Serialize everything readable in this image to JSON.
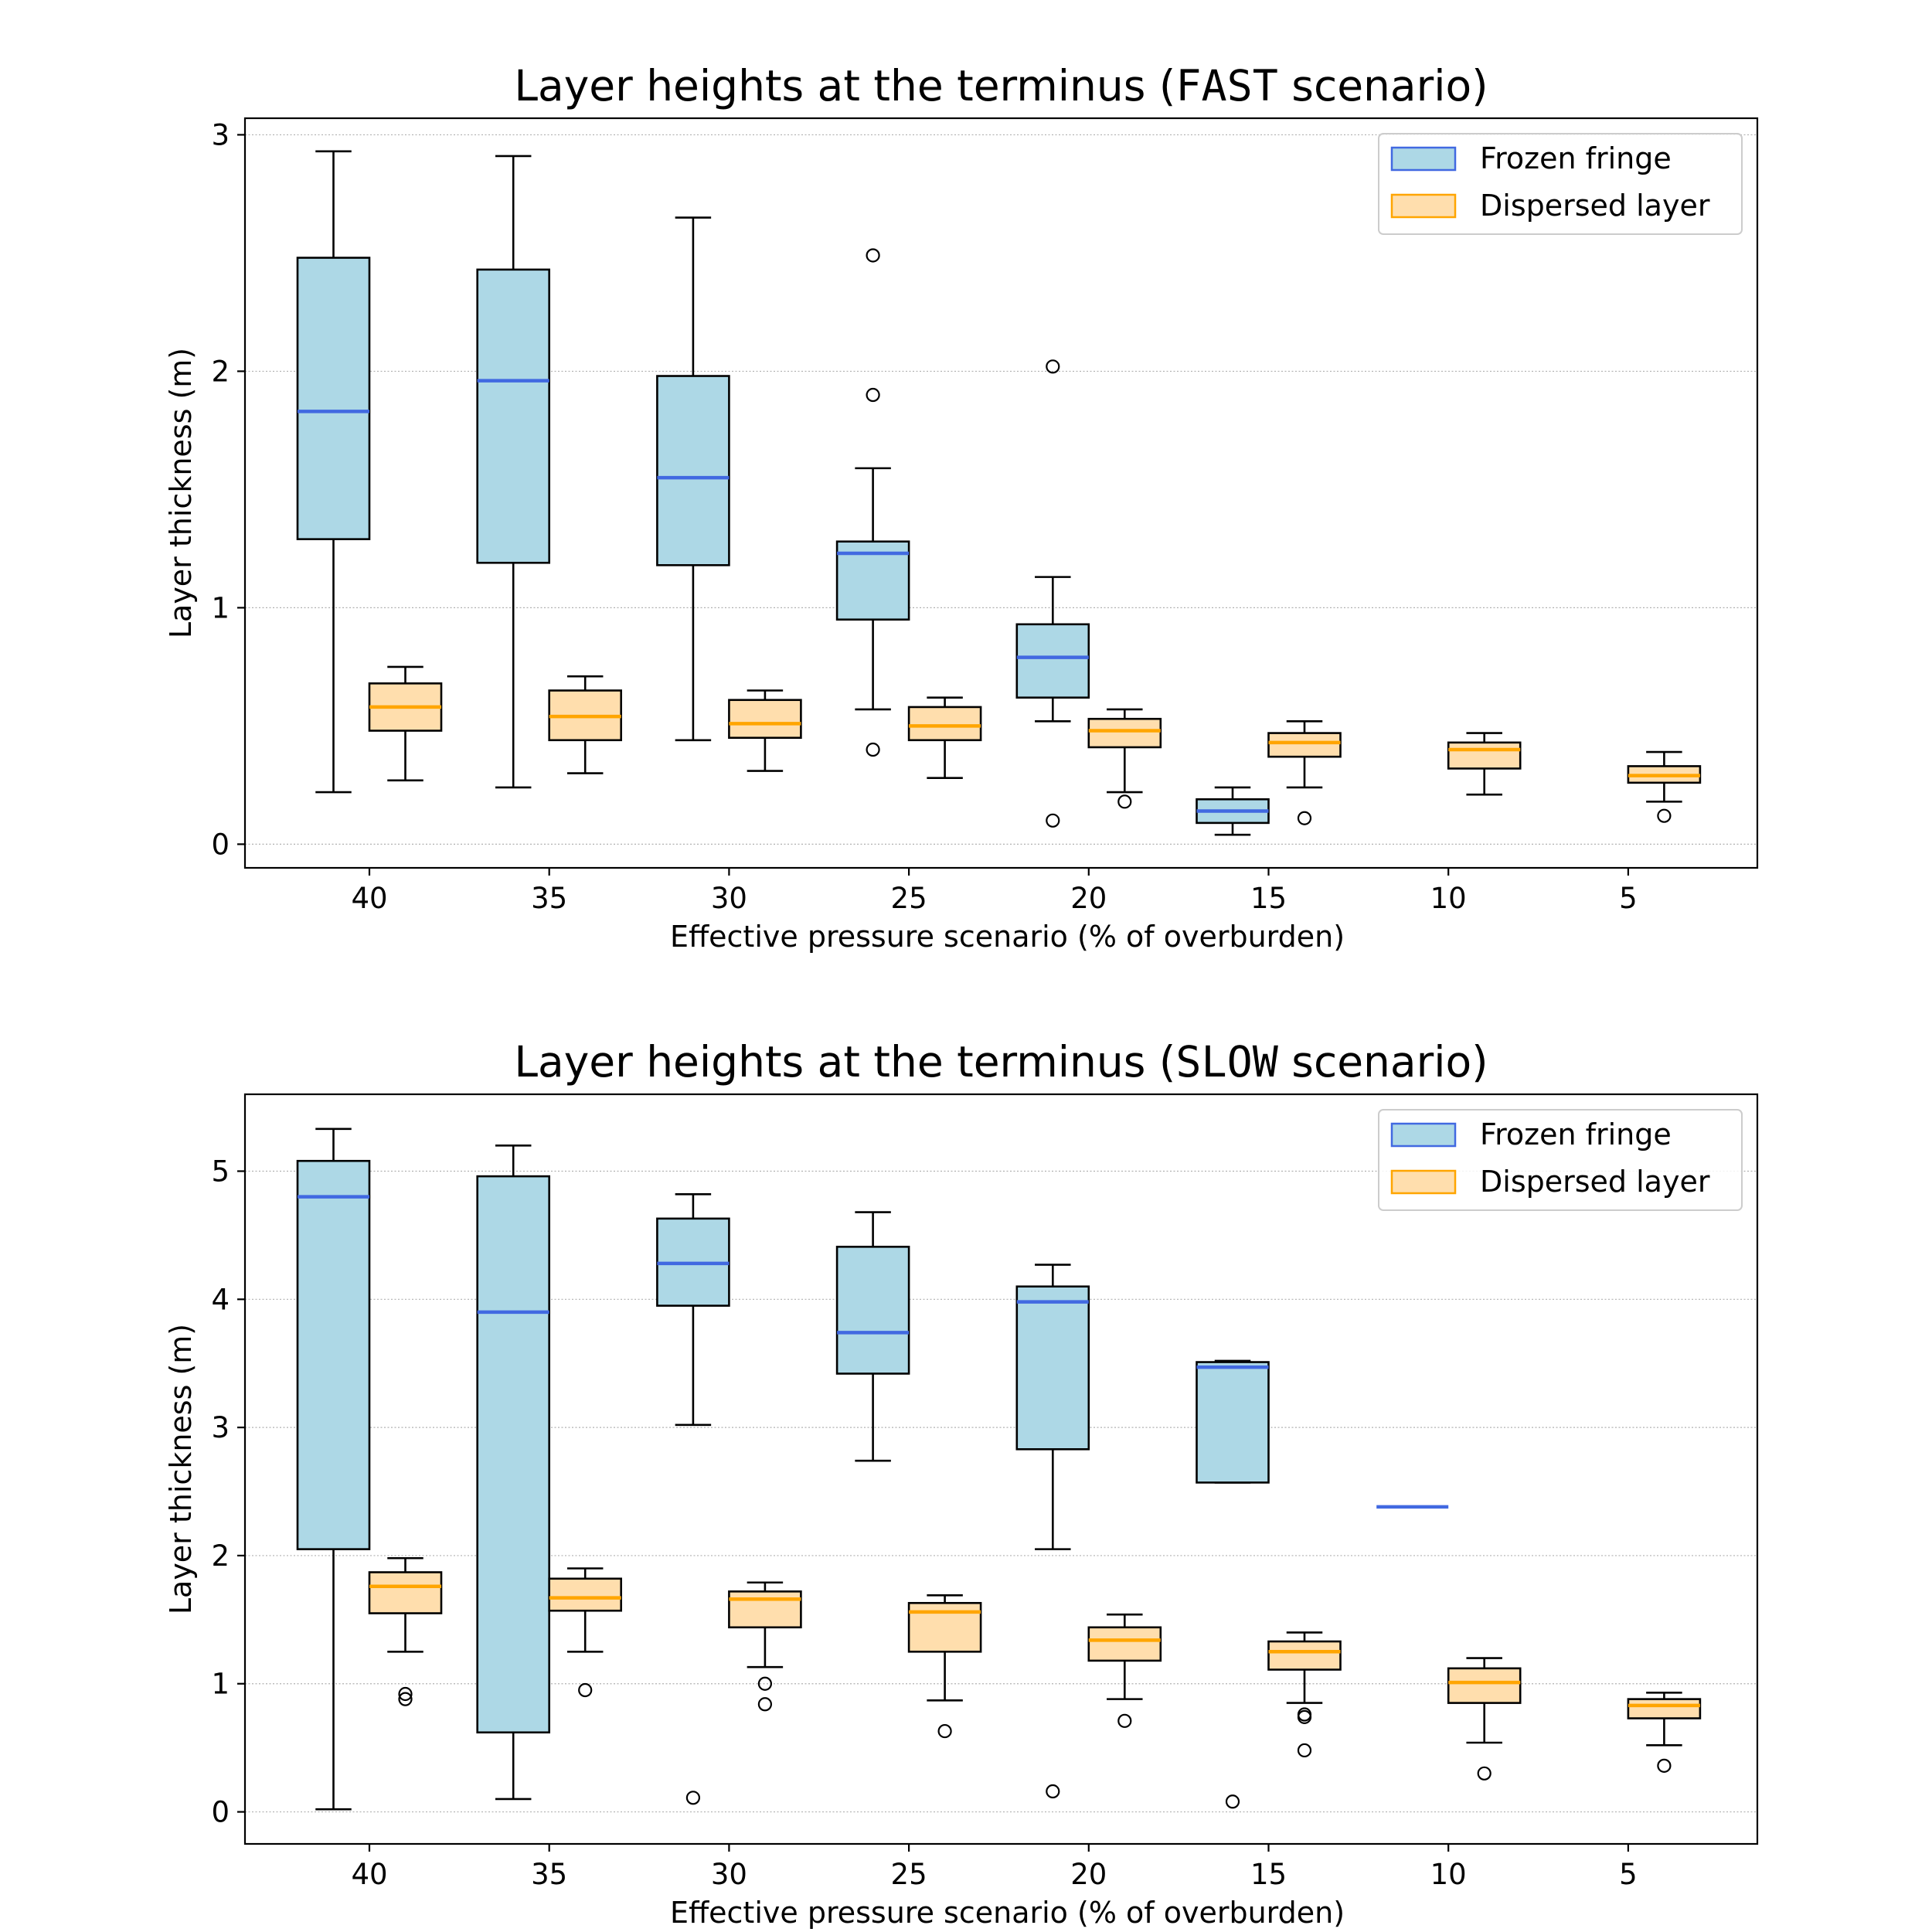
{
  "colors": {
    "frozen_fill": "#add8e6",
    "frozen_median": "#4169e1",
    "dispersed_fill": "#ffdead",
    "dispersed_median": "#ffa500",
    "grid": "#b0b0b0",
    "frame": "#000000"
  },
  "chart_data": [
    {
      "type": "box",
      "title": {
        "prefix": "Layer heights at the terminus (",
        "code": "FAST",
        "suffix": " scenario)"
      },
      "xlabel": "Effective pressure scenario (% of overburden)",
      "ylabel": "Layer thickness (m)",
      "categories": [
        "40",
        "35",
        "30",
        "25",
        "20",
        "15",
        "10",
        "5"
      ],
      "ylim": [
        -0.1,
        3.07
      ],
      "yticks": [
        0,
        1,
        2,
        3
      ],
      "grid": "y, dotted",
      "legend": {
        "placement": "top-right",
        "entries": [
          "Frozen fringe",
          "Dispersed layer"
        ]
      },
      "series": [
        {
          "name": "Frozen fringe",
          "boxes": [
            {
              "category": "40",
              "whislo": 0.22,
              "q1": 1.29,
              "med": 1.83,
              "q3": 2.48,
              "whishi": 2.93,
              "fliers": []
            },
            {
              "category": "35",
              "whislo": 0.24,
              "q1": 1.19,
              "med": 1.96,
              "q3": 2.43,
              "whishi": 2.91,
              "fliers": []
            },
            {
              "category": "30",
              "whislo": 0.44,
              "q1": 1.18,
              "med": 1.55,
              "q3": 1.98,
              "whishi": 2.65,
              "fliers": []
            },
            {
              "category": "25",
              "whislo": 0.57,
              "q1": 0.95,
              "med": 1.23,
              "q3": 1.28,
              "whishi": 1.59,
              "fliers": [
                2.49,
                1.9,
                0.4
              ]
            },
            {
              "category": "20",
              "whislo": 0.52,
              "q1": 0.62,
              "med": 0.79,
              "q3": 0.93,
              "whishi": 1.13,
              "fliers": [
                2.02,
                0.1
              ]
            },
            {
              "category": "15",
              "whislo": 0.04,
              "q1": 0.09,
              "med": 0.14,
              "q3": 0.19,
              "whishi": 0.24,
              "fliers": []
            }
          ]
        },
        {
          "name": "Dispersed layer",
          "boxes": [
            {
              "category": "40",
              "whislo": 0.27,
              "q1": 0.48,
              "med": 0.58,
              "q3": 0.68,
              "whishi": 0.75,
              "fliers": []
            },
            {
              "category": "35",
              "whislo": 0.3,
              "q1": 0.44,
              "med": 0.54,
              "q3": 0.65,
              "whishi": 0.71,
              "fliers": []
            },
            {
              "category": "30",
              "whislo": 0.31,
              "q1": 0.45,
              "med": 0.51,
              "q3": 0.61,
              "whishi": 0.65,
              "fliers": []
            },
            {
              "category": "25",
              "whislo": 0.28,
              "q1": 0.44,
              "med": 0.5,
              "q3": 0.58,
              "whishi": 0.62,
              "fliers": []
            },
            {
              "category": "20",
              "whislo": 0.22,
              "q1": 0.41,
              "med": 0.48,
              "q3": 0.53,
              "whishi": 0.57,
              "fliers": [
                0.18
              ]
            },
            {
              "category": "15",
              "whislo": 0.24,
              "q1": 0.37,
              "med": 0.43,
              "q3": 0.47,
              "whishi": 0.52,
              "fliers": [
                0.11
              ]
            },
            {
              "category": "10",
              "whislo": 0.21,
              "q1": 0.32,
              "med": 0.4,
              "q3": 0.43,
              "whishi": 0.47,
              "fliers": []
            },
            {
              "category": "5",
              "whislo": 0.18,
              "q1": 0.26,
              "med": 0.29,
              "q3": 0.33,
              "whishi": 0.39,
              "fliers": [
                0.12
              ]
            }
          ]
        }
      ]
    },
    {
      "type": "box",
      "title": {
        "prefix": "Layer heights at the terminus (",
        "code": "SLOW",
        "suffix": " scenario)"
      },
      "xlabel": "Effective pressure scenario (% of overburden)",
      "ylabel": "Layer thickness (m)",
      "categories": [
        "40",
        "35",
        "30",
        "25",
        "20",
        "15",
        "10",
        "5"
      ],
      "ylim": [
        -0.25,
        5.6
      ],
      "yticks": [
        0,
        1,
        2,
        3,
        4,
        5
      ],
      "grid": "y, dotted",
      "legend": {
        "placement": "top-right",
        "entries": [
          "Frozen fringe",
          "Dispersed layer"
        ]
      },
      "series": [
        {
          "name": "Frozen fringe",
          "boxes": [
            {
              "category": "40",
              "whislo": 0.02,
              "q1": 2.05,
              "med": 4.8,
              "q3": 5.08,
              "whishi": 5.33,
              "fliers": []
            },
            {
              "category": "35",
              "whislo": 0.1,
              "q1": 0.62,
              "med": 3.9,
              "q3": 4.96,
              "whishi": 5.2,
              "fliers": []
            },
            {
              "category": "30",
              "whislo": 3.02,
              "q1": 3.95,
              "med": 4.28,
              "q3": 4.63,
              "whishi": 4.82,
              "fliers": [
                0.11
              ]
            },
            {
              "category": "25",
              "whislo": 2.74,
              "q1": 3.42,
              "med": 3.74,
              "q3": 4.41,
              "whishi": 4.68,
              "fliers": []
            },
            {
              "category": "20",
              "whislo": 2.05,
              "q1": 2.83,
              "med": 3.98,
              "q3": 4.1,
              "whishi": 4.27,
              "fliers": [
                0.16
              ]
            },
            {
              "category": "15",
              "whislo": 2.57,
              "q1": 2.57,
              "med": 3.47,
              "q3": 3.51,
              "whishi": 3.52,
              "fliers": [
                0.08
              ]
            },
            {
              "category": "10",
              "whislo": 2.38,
              "q1": 2.38,
              "med": 2.38,
              "q3": 2.38,
              "whishi": 2.38,
              "fliers": []
            }
          ]
        },
        {
          "name": "Dispersed layer",
          "boxes": [
            {
              "category": "40",
              "whislo": 1.25,
              "q1": 1.55,
              "med": 1.76,
              "q3": 1.87,
              "whishi": 1.98,
              "fliers": [
                0.92,
                0.88
              ]
            },
            {
              "category": "35",
              "whislo": 1.25,
              "q1": 1.57,
              "med": 1.67,
              "q3": 1.82,
              "whishi": 1.9,
              "fliers": [
                0.95
              ]
            },
            {
              "category": "30",
              "whislo": 1.13,
              "q1": 1.44,
              "med": 1.66,
              "q3": 1.72,
              "whishi": 1.79,
              "fliers": [
                1.0,
                0.84
              ]
            },
            {
              "category": "25",
              "whislo": 0.87,
              "q1": 1.25,
              "med": 1.56,
              "q3": 1.63,
              "whishi": 1.69,
              "fliers": [
                0.63
              ]
            },
            {
              "category": "20",
              "whislo": 0.88,
              "q1": 1.18,
              "med": 1.34,
              "q3": 1.44,
              "whishi": 1.54,
              "fliers": [
                0.71
              ]
            },
            {
              "category": "15",
              "whislo": 0.85,
              "q1": 1.11,
              "med": 1.25,
              "q3": 1.33,
              "whishi": 1.4,
              "fliers": [
                0.76,
                0.74,
                0.48
              ]
            },
            {
              "category": "10",
              "whislo": 0.54,
              "q1": 0.85,
              "med": 1.01,
              "q3": 1.12,
              "whishi": 1.2,
              "fliers": [
                0.3
              ]
            },
            {
              "category": "5",
              "whislo": 0.52,
              "q1": 0.73,
              "med": 0.83,
              "q3": 0.88,
              "whishi": 0.93,
              "fliers": [
                0.36
              ]
            }
          ]
        }
      ]
    }
  ]
}
